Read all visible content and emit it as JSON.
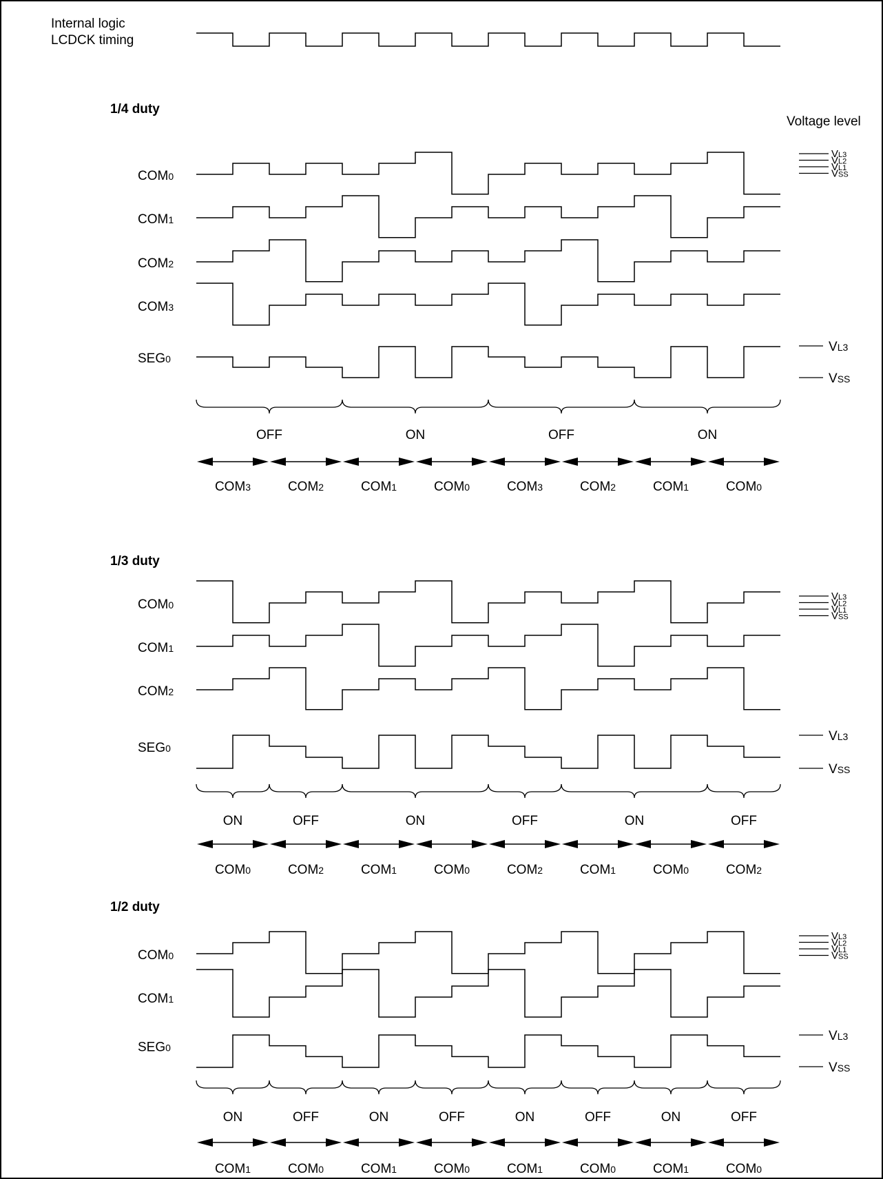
{
  "clock": {
    "label_line1": "Internal logic",
    "label_line2": "LCDCK timing",
    "levels": [
      1,
      0,
      1,
      0,
      1,
      0,
      1,
      0,
      1,
      0,
      1,
      0,
      1,
      0,
      1,
      0
    ]
  },
  "voltage_header": "Voltage level",
  "sections": [
    {
      "id": "d4",
      "title": "1/4 duty",
      "com_levels": [
        {
          "sym": "V",
          "sub": "L3"
        },
        {
          "sym": "V",
          "sub": "L2"
        },
        {
          "sym": "V",
          "sub": "L1"
        },
        {
          "sym": "V",
          "sub": "SS"
        }
      ],
      "seg_levels": [
        {
          "sym": "V",
          "sub": "L3"
        },
        {
          "sym": "V",
          "sub": "SS"
        }
      ],
      "waves": [
        {
          "base": "COM",
          "sub": "0",
          "levels": [
            0,
            1,
            0,
            1,
            0,
            1,
            2,
            -1,
            0,
            1,
            0,
            1,
            0,
            1,
            2,
            -1
          ]
        },
        {
          "base": "COM",
          "sub": "1",
          "levels": [
            0,
            1,
            0,
            1,
            2,
            -1,
            0,
            1,
            0,
            1,
            0,
            1,
            2,
            -1,
            0,
            1
          ]
        },
        {
          "base": "COM",
          "sub": "2",
          "levels": [
            0,
            1,
            2,
            -1,
            0,
            1,
            0,
            1,
            0,
            1,
            2,
            -1,
            0,
            1,
            0,
            1
          ]
        },
        {
          "base": "COM",
          "sub": "3",
          "levels": [
            2,
            -1,
            0,
            1,
            0,
            1,
            0,
            1,
            2,
            -1,
            0,
            1,
            0,
            1,
            0,
            1
          ]
        },
        {
          "base": "SEG",
          "sub": "0",
          "levels": [
            1,
            0,
            1,
            0,
            -1,
            2,
            -1,
            2,
            1,
            0,
            1,
            0,
            -1,
            2,
            -1,
            2
          ]
        }
      ],
      "state_labels": [
        "OFF",
        "ON",
        "OFF",
        "ON"
      ],
      "time_labels": [
        {
          "base": "COM",
          "sub": "3"
        },
        {
          "base": "COM",
          "sub": "2"
        },
        {
          "base": "COM",
          "sub": "1"
        },
        {
          "base": "COM",
          "sub": "0"
        },
        {
          "base": "COM",
          "sub": "3"
        },
        {
          "base": "COM",
          "sub": "2"
        },
        {
          "base": "COM",
          "sub": "1"
        },
        {
          "base": "COM",
          "sub": "0"
        }
      ]
    },
    {
      "id": "d3",
      "title": "1/3 duty",
      "com_levels": [
        {
          "sym": "V",
          "sub": "L3"
        },
        {
          "sym": "V",
          "sub": "L2"
        },
        {
          "sym": "V",
          "sub": "L1"
        },
        {
          "sym": "V",
          "sub": "SS"
        }
      ],
      "seg_levels": [
        {
          "sym": "V",
          "sub": "L3"
        },
        {
          "sym": "V",
          "sub": "SS"
        }
      ],
      "waves": [
        {
          "base": "COM",
          "sub": "0",
          "levels": [
            2,
            -1,
            0,
            1,
            0,
            1,
            2,
            -1,
            0,
            1,
            0,
            1,
            2,
            -1,
            0,
            1
          ]
        },
        {
          "base": "COM",
          "sub": "1",
          "levels": [
            0,
            1,
            0,
            1,
            2,
            -1,
            0,
            1,
            0,
            1,
            2,
            -1,
            0,
            1,
            0,
            1
          ]
        },
        {
          "base": "COM",
          "sub": "2",
          "levels": [
            0,
            1,
            2,
            -1,
            0,
            1,
            0,
            1,
            2,
            -1,
            0,
            1,
            0,
            1,
            2,
            -1
          ]
        },
        {
          "base": "SEG",
          "sub": "0",
          "levels": [
            -1,
            2,
            1,
            0,
            -1,
            2,
            -1,
            2,
            1,
            0,
            -1,
            2,
            -1,
            2,
            1,
            0
          ]
        }
      ],
      "state_labels": [
        "ON",
        "OFF",
        "ON",
        "OFF",
        "ON",
        "OFF"
      ],
      "time_labels": [
        {
          "base": "COM",
          "sub": "0"
        },
        {
          "base": "COM",
          "sub": "2"
        },
        {
          "base": "COM",
          "sub": "1"
        },
        {
          "base": "COM",
          "sub": "0"
        },
        {
          "base": "COM",
          "sub": "2"
        },
        {
          "base": "COM",
          "sub": "1"
        },
        {
          "base": "COM",
          "sub": "0"
        },
        {
          "base": "COM",
          "sub": "2"
        }
      ]
    },
    {
      "id": "d2",
      "title": "1/2 duty",
      "com_levels": [
        {
          "sym": "V",
          "sub": "L3"
        },
        {
          "sym": "V",
          "sub": "L2"
        },
        {
          "sym": "V",
          "sub": "L1"
        },
        {
          "sym": "V",
          "sub": "SS"
        }
      ],
      "seg_levels": [
        {
          "sym": "V",
          "sub": "L3"
        },
        {
          "sym": "V",
          "sub": "SS"
        }
      ],
      "waves": [
        {
          "base": "COM",
          "sub": "0",
          "levels": [
            0,
            1,
            2,
            -1,
            0,
            1,
            2,
            -1,
            0,
            1,
            2,
            -1,
            0,
            1,
            2,
            -1
          ]
        },
        {
          "base": "COM",
          "sub": "1",
          "levels": [
            2,
            -1,
            0,
            1,
            2,
            -1,
            0,
            1,
            2,
            -1,
            0,
            1,
            2,
            -1,
            0,
            1
          ]
        },
        {
          "base": "SEG",
          "sub": "0",
          "levels": [
            -1,
            2,
            1,
            0,
            -1,
            2,
            1,
            0,
            -1,
            2,
            1,
            0,
            -1,
            2,
            1,
            0
          ]
        }
      ],
      "state_labels": [
        "ON",
        "OFF",
        "ON",
        "OFF",
        "ON",
        "OFF",
        "ON",
        "OFF"
      ],
      "time_labels": [
        {
          "base": "COM",
          "sub": "1"
        },
        {
          "base": "COM",
          "sub": "0"
        },
        {
          "base": "COM",
          "sub": "1"
        },
        {
          "base": "COM",
          "sub": "0"
        },
        {
          "base": "COM",
          "sub": "1"
        },
        {
          "base": "COM",
          "sub": "0"
        },
        {
          "base": "COM",
          "sub": "1"
        },
        {
          "base": "COM",
          "sub": "0"
        }
      ]
    }
  ]
}
